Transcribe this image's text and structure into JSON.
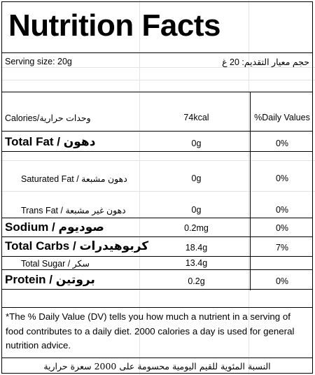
{
  "title": "Nutrition Facts",
  "serving": {
    "en": "Serving size: 20g",
    "ar": "حجم معيار التقديم: 20 غ"
  },
  "header": {
    "calories_label": "Calories/وحدات حرارية",
    "calories_value": "74kcal",
    "dv_label": "%Daily Values"
  },
  "rows": [
    {
      "label": "Total Fat / دهون",
      "amount": "0g",
      "dv": "0%"
    },
    {
      "label": "Saturated Fat / دهون مشبعة",
      "amount": "0g",
      "dv": "0%"
    },
    {
      "label": "Trans Fat / دهون غير مشبعة",
      "amount": "0g",
      "dv": "0%"
    },
    {
      "label": "Sodium / صوديوم",
      "amount": "0.2mg",
      "dv": "0%"
    },
    {
      "label": "Total Carbs / كربوهيدرات",
      "amount": "18.4g",
      "dv": "7%"
    },
    {
      "label": "Total Sugar / سكر",
      "amount": "13.4g",
      "dv": ""
    },
    {
      "label": "Protein / بروتين",
      "amount": "0.2g",
      "dv": "0%"
    }
  ],
  "footnote": {
    "en": "*The % Daily Value (DV) tells you how much a nutrient in a serving of food contributes to a daily diet. 2000 calories a day is used for general nutrition advice.",
    "ar": "النسبة المئوية للقيم اليومية محسومة على 2000 سعرة حرارية"
  }
}
